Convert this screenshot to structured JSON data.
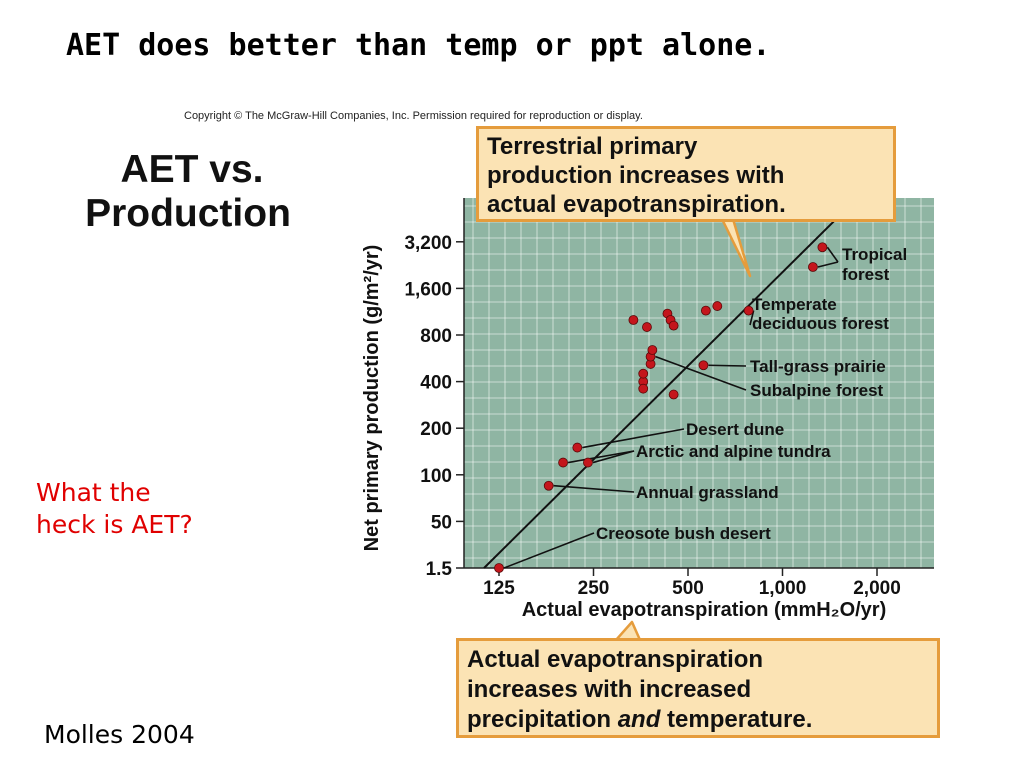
{
  "slide": {
    "title": "AET does better than temp or ppt alone.",
    "copyright": "Copyright © The McGraw-Hill Companies, Inc. Permission required for reproduction or display.",
    "figure_title": [
      "AET vs.",
      "Production"
    ],
    "question": [
      "What the",
      "heck is AET?"
    ],
    "citation": "Molles 2004"
  },
  "callouts": {
    "top": [
      "Terrestrial primary",
      "production increases with",
      "actual evapotranspiration."
    ],
    "bottom_line1": "Actual evapotranspiration",
    "bottom_line2": "increases with increased",
    "bottom_line3_pre": "precipitation ",
    "bottom_line3_em": "and",
    "bottom_line3_post": " temperature."
  },
  "colors": {
    "plot_bg": "#8fb5a3",
    "grid": "#ffffff",
    "point": "#c4161c",
    "callout_bg": "#fbe3b4",
    "callout_border": "#e59c3c",
    "question_text": "#e00000"
  },
  "chart_data": {
    "type": "scatter",
    "xlabel": "Actual evapotranspiration (mmH₂O/yr)",
    "ylabel": "Net primary production (g/m²/yr)",
    "x_scale": "log",
    "y_scale": "log",
    "x_ticks": [
      {
        "value": 125,
        "label": "125"
      },
      {
        "value": 250,
        "label": "250"
      },
      {
        "value": 500,
        "label": "500"
      },
      {
        "value": 1000,
        "label": "1,000"
      },
      {
        "value": 2000,
        "label": "2,000"
      }
    ],
    "y_ticks": [
      {
        "value": 1.5,
        "label": "1.5"
      },
      {
        "value": 50,
        "label": "50"
      },
      {
        "value": 100,
        "label": "100"
      },
      {
        "value": 200,
        "label": "200"
      },
      {
        "value": 400,
        "label": "400"
      },
      {
        "value": 800,
        "label": "800"
      },
      {
        "value": 1600,
        "label": "1,600"
      },
      {
        "value": 3200,
        "label": "3,200"
      }
    ],
    "grid": true,
    "points": [
      {
        "x": 125,
        "y": 1.5
      },
      {
        "x": 180,
        "y": 85
      },
      {
        "x": 200,
        "y": 120
      },
      {
        "x": 222,
        "y": 150
      },
      {
        "x": 240,
        "y": 120
      },
      {
        "x": 335,
        "y": 1000
      },
      {
        "x": 360,
        "y": 400
      },
      {
        "x": 360,
        "y": 450
      },
      {
        "x": 360,
        "y": 360
      },
      {
        "x": 370,
        "y": 900
      },
      {
        "x": 380,
        "y": 520
      },
      {
        "x": 380,
        "y": 580
      },
      {
        "x": 385,
        "y": 640
      },
      {
        "x": 430,
        "y": 1100
      },
      {
        "x": 440,
        "y": 1000
      },
      {
        "x": 450,
        "y": 920
      },
      {
        "x": 450,
        "y": 330
      },
      {
        "x": 560,
        "y": 510
      },
      {
        "x": 570,
        "y": 1150
      },
      {
        "x": 620,
        "y": 1230
      },
      {
        "x": 780,
        "y": 1150
      },
      {
        "x": 1250,
        "y": 2200
      },
      {
        "x": 1340,
        "y": 2950
      }
    ],
    "annotations": [
      {
        "text": [
          "Tropical",
          "forest"
        ],
        "targets": [
          22,
          21
        ]
      },
      {
        "text": [
          "Temperate",
          "deciduous forest"
        ],
        "targets": [
          20
        ]
      },
      {
        "text": [
          "Tall-grass prairie"
        ],
        "targets": [
          17
        ]
      },
      {
        "text": [
          "Subalpine forest"
        ],
        "targets": [
          11
        ]
      },
      {
        "text": [
          "Desert dune"
        ],
        "targets": [
          3
        ]
      },
      {
        "text": [
          "Arctic and alpine tundra"
        ],
        "targets": [
          2,
          4
        ]
      },
      {
        "text": [
          "Annual grassland"
        ],
        "targets": [
          1
        ]
      },
      {
        "text": [
          "Creosote bush desert"
        ],
        "targets": [
          0
        ]
      }
    ],
    "trend_line": {
      "x": [
        112,
        1500
      ],
      "y": [
        1.5,
        4600
      ]
    }
  }
}
